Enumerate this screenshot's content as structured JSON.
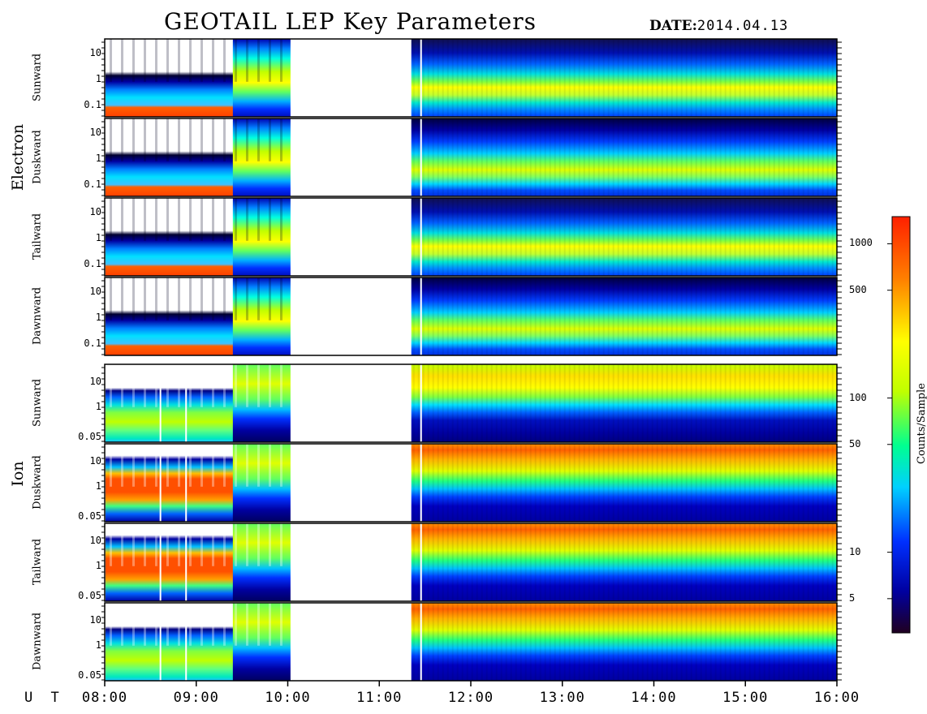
{
  "title": "GEOTAIL LEP Key Parameters",
  "date_label": "DATE:",
  "date_value": "2014.04.13",
  "ut_label": "U T",
  "chart_data": {
    "type": "heatmap",
    "title": "GEOTAIL LEP Key Parameters",
    "x_ticks": [
      "08:00",
      "09:00",
      "10:00",
      "11:00",
      "12:00",
      "13:00",
      "14:00",
      "15:00",
      "16:00"
    ],
    "x_range_hours": [
      8,
      16
    ],
    "data_gaps": [
      [
        10.03,
        11.35
      ]
    ],
    "colorbar": {
      "label": "Counts/Sample",
      "scale": "log",
      "range": [
        3,
        1500
      ],
      "ticks": [
        "1000",
        "500",
        "100",
        "50",
        "10",
        "5"
      ],
      "colors": [
        "#200020",
        "#0000a0",
        "#0030ff",
        "#00d0ff",
        "#00ff90",
        "#c0ff00",
        "#ffff00",
        "#ff8000",
        "#ff2000"
      ]
    },
    "groups": [
      {
        "species": "Electron",
        "panels": [
          {
            "name": "Sunward",
            "yticks": [
              "10",
              "1",
              "0.1"
            ],
            "yscale": "log"
          },
          {
            "name": "Duskward",
            "yticks": [
              "10",
              "1",
              "0.1"
            ],
            "yscale": "log"
          },
          {
            "name": "Tailward",
            "yticks": [
              "10",
              "1",
              "0.1"
            ],
            "yscale": "log"
          },
          {
            "name": "Dawnward",
            "yticks": [
              "10",
              "1",
              "0.1"
            ],
            "yscale": "log"
          }
        ]
      },
      {
        "species": "Ion",
        "panels": [
          {
            "name": "Sunward",
            "yticks": [
              "10",
              "1",
              "0.05"
            ],
            "yscale": "log"
          },
          {
            "name": "Duskward",
            "yticks": [
              "10",
              "1",
              "0.05"
            ],
            "yscale": "log"
          },
          {
            "name": "Tailward",
            "yticks": [
              "10",
              "1",
              "0.05"
            ],
            "yscale": "log"
          },
          {
            "name": "Dawnward",
            "yticks": [
              "10",
              "1",
              "0.05"
            ],
            "yscale": "log"
          }
        ]
      }
    ]
  }
}
